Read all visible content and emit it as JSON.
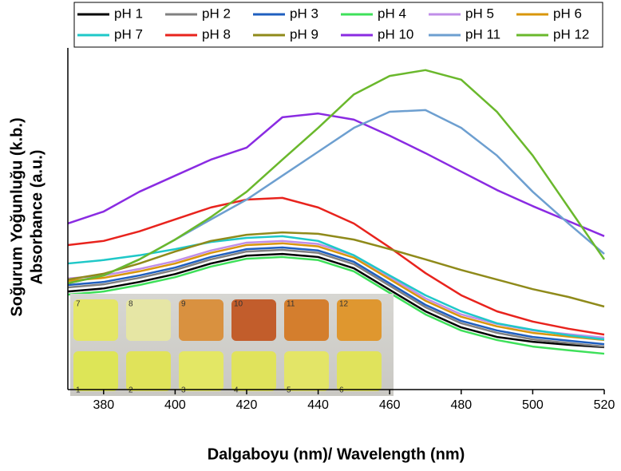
{
  "chart_data": {
    "type": "line",
    "x_label": "Dalgaboyu (nm)/ Wavelength (nm)",
    "y_label": [
      "Soğurum Yoğunluğu (k.b.)",
      "Absorbance (a.u.)"
    ],
    "x": [
      370,
      380,
      390,
      400,
      410,
      420,
      430,
      440,
      450,
      460,
      470,
      480,
      490,
      500,
      510,
      520
    ],
    "xlim": [
      370,
      520
    ],
    "xticks": [
      380,
      400,
      420,
      440,
      460,
      480,
      500,
      520
    ],
    "ylim": [
      0,
      1
    ],
    "series": [
      {
        "name": "pH 1",
        "color": "#000000",
        "values": [
          0.287,
          0.296,
          0.315,
          0.338,
          0.369,
          0.392,
          0.397,
          0.388,
          0.355,
          0.292,
          0.229,
          0.182,
          0.154,
          0.14,
          0.131,
          0.124
        ]
      },
      {
        "name": "pH 2",
        "color": "#808080",
        "values": [
          0.299,
          0.308,
          0.327,
          0.35,
          0.381,
          0.404,
          0.409,
          0.4,
          0.367,
          0.304,
          0.241,
          0.194,
          0.166,
          0.147,
          0.136,
          0.126
        ]
      },
      {
        "name": "pH 3",
        "color": "#1f5fbf",
        "values": [
          0.306,
          0.315,
          0.334,
          0.357,
          0.388,
          0.411,
          0.416,
          0.407,
          0.374,
          0.311,
          0.248,
          0.201,
          0.173,
          0.154,
          0.143,
          0.133
        ]
      },
      {
        "name": "pH 4",
        "color": "#3ee05a",
        "values": [
          0.278,
          0.287,
          0.306,
          0.329,
          0.36,
          0.383,
          0.388,
          0.379,
          0.346,
          0.283,
          0.22,
          0.173,
          0.145,
          0.126,
          0.115,
          0.105
        ]
      },
      {
        "name": "pH 5",
        "color": "#c08ee8",
        "values": [
          0.325,
          0.334,
          0.353,
          0.376,
          0.407,
          0.43,
          0.435,
          0.426,
          0.393,
          0.33,
          0.267,
          0.22,
          0.192,
          0.173,
          0.162,
          0.152
        ]
      },
      {
        "name": "pH 6",
        "color": "#d9960a",
        "values": [
          0.318,
          0.327,
          0.346,
          0.369,
          0.4,
          0.423,
          0.428,
          0.419,
          0.386,
          0.323,
          0.26,
          0.213,
          0.185,
          0.166,
          0.155,
          0.145
        ]
      },
      {
        "name": "pH 7",
        "color": "#1fc8c8",
        "values": [
          0.369,
          0.379,
          0.393,
          0.411,
          0.432,
          0.444,
          0.449,
          0.435,
          0.393,
          0.334,
          0.276,
          0.229,
          0.194,
          0.175,
          0.159,
          0.147
        ]
      },
      {
        "name": "pH 8",
        "color": "#e8231d",
        "values": [
          0.423,
          0.435,
          0.463,
          0.498,
          0.533,
          0.556,
          0.561,
          0.533,
          0.486,
          0.416,
          0.341,
          0.276,
          0.229,
          0.199,
          0.178,
          0.161
        ]
      },
      {
        "name": "pH 9",
        "color": "#8f8a1a",
        "values": [
          0.322,
          0.339,
          0.369,
          0.404,
          0.435,
          0.453,
          0.46,
          0.456,
          0.439,
          0.411,
          0.381,
          0.35,
          0.322,
          0.294,
          0.271,
          0.243
        ]
      },
      {
        "name": "pH 10",
        "color": "#8a2be2",
        "values": [
          0.486,
          0.521,
          0.579,
          0.626,
          0.673,
          0.708,
          0.797,
          0.808,
          0.79,
          0.743,
          0.692,
          0.638,
          0.584,
          0.537,
          0.493,
          0.449
        ]
      },
      {
        "name": "pH 11",
        "color": "#6d9fd0",
        "values": [
          0.311,
          0.334,
          0.381,
          0.439,
          0.498,
          0.556,
          0.626,
          0.696,
          0.766,
          0.813,
          0.818,
          0.766,
          0.685,
          0.579,
          0.486,
          0.397
        ]
      },
      {
        "name": "pH 12",
        "color": "#6ab82c",
        "values": [
          0.311,
          0.334,
          0.381,
          0.439,
          0.505,
          0.579,
          0.673,
          0.766,
          0.864,
          0.918,
          0.935,
          0.907,
          0.813,
          0.685,
          0.533,
          0.381
        ]
      }
    ],
    "inset_labels": [
      "7",
      "8",
      "9",
      "10",
      "11",
      "12",
      "1",
      "2",
      "3",
      "4",
      "5",
      "6"
    ]
  }
}
